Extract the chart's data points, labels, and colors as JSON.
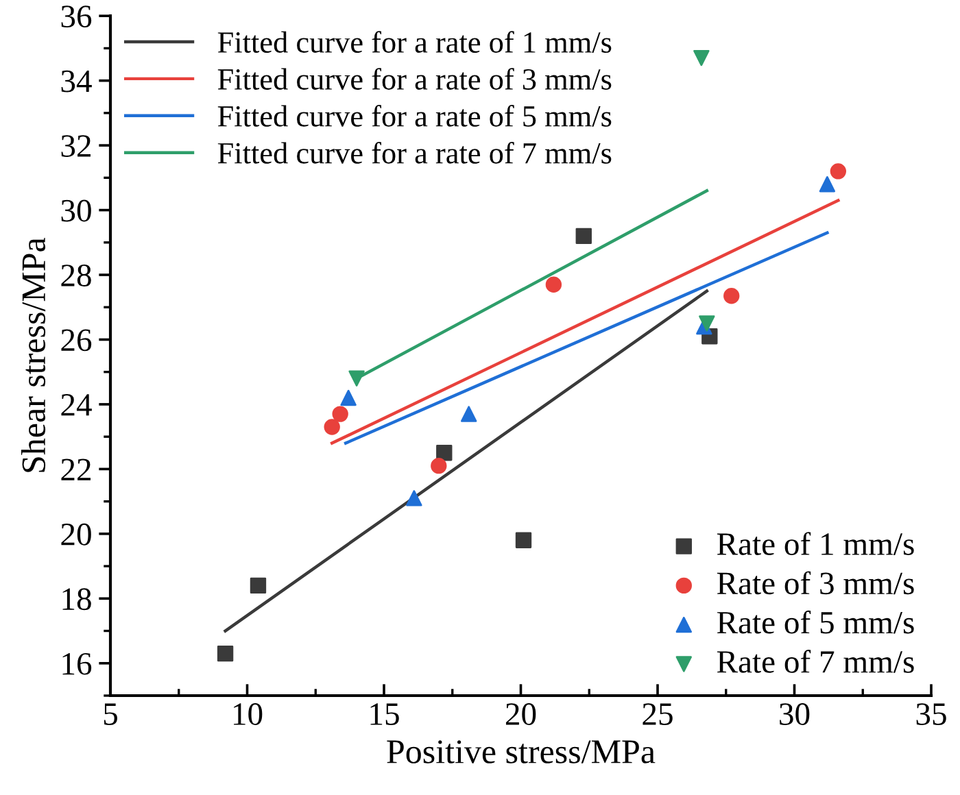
{
  "chart_data": {
    "type": "scatter",
    "xlabel": "Positive stress/MPa",
    "ylabel": "Shear stress/MPa",
    "xlim": [
      5,
      35
    ],
    "xticks": [
      5,
      10,
      15,
      20,
      25,
      30,
      35
    ],
    "ylim": [
      15,
      36
    ],
    "yticks": [
      16,
      18,
      20,
      22,
      24,
      26,
      28,
      30,
      32,
      34,
      36
    ],
    "grid": false,
    "legend": "top left",
    "series": [
      {
        "name": "Fitted curve for a rate of 1 mm/s",
        "type": "line",
        "color": "#3a3a3a",
        "x": [
          9.2,
          26.8
        ],
        "values": [
          17.0,
          27.5
        ],
        "marker": "none"
      },
      {
        "name": "Fitted curve for a rate of 3 mm/s",
        "type": "line",
        "color": "#e8413c",
        "x": [
          13.1,
          31.6
        ],
        "values": [
          22.8,
          30.3
        ],
        "marker": "none"
      },
      {
        "name": "Fitted curve for a rate of 5 mm/s",
        "type": "line",
        "color": "#1f6fd6",
        "x": [
          13.6,
          31.2
        ],
        "values": [
          22.8,
          29.3
        ],
        "marker": "none"
      },
      {
        "name": "Fitted curve for a rate of 7 mm/s",
        "type": "line",
        "color": "#2e9e6a",
        "x": [
          14.0,
          26.8
        ],
        "values": [
          24.8,
          30.6
        ],
        "marker": "none"
      },
      {
        "name": "Rate of 1 mm/s",
        "color": "#3a3a3a",
        "marker": "square",
        "x": [
          9.2,
          10.4,
          17.2,
          20.1,
          22.3,
          26.9
        ],
        "values": [
          16.3,
          18.4,
          22.5,
          19.8,
          29.2,
          26.1
        ]
      },
      {
        "name": "Rate of 3 mm/s",
        "color": "#e8413c",
        "marker": "circle",
        "x": [
          13.1,
          13.4,
          17.0,
          21.2,
          27.7,
          31.6
        ],
        "values": [
          23.3,
          23.7,
          22.1,
          27.7,
          27.35,
          31.2
        ]
      },
      {
        "name": "Rate of 5 mm/s",
        "color": "#1f6fd6",
        "marker": "triangle",
        "x": [
          13.7,
          16.1,
          18.1,
          26.7,
          31.2
        ],
        "values": [
          24.2,
          21.1,
          23.7,
          26.4,
          30.8
        ]
      },
      {
        "name": "Rate of 7 mm/s",
        "color": "#2e9e6a",
        "marker": "triangle_down",
        "x": [
          14.0,
          26.8,
          26.6
        ],
        "values": [
          24.8,
          26.5,
          34.7
        ]
      }
    ]
  }
}
